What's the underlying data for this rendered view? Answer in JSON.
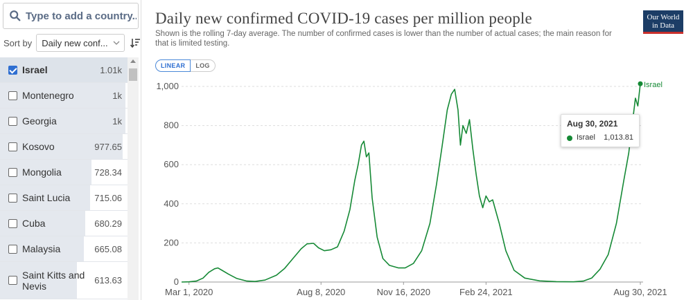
{
  "search": {
    "placeholder": "Type to add a country..."
  },
  "sort": {
    "label": "Sort by",
    "selected": "Daily new conf..."
  },
  "countries": [
    {
      "name": "Israel",
      "value_label": "1.01k",
      "value": 1013.81,
      "selected": true
    },
    {
      "name": "Montenegro",
      "value_label": "1k",
      "value": 1000,
      "selected": false
    },
    {
      "name": "Georgia",
      "value_label": "1k",
      "value": 1000,
      "selected": false
    },
    {
      "name": "Kosovo",
      "value_label": "977.65",
      "value": 977.65,
      "selected": false
    },
    {
      "name": "Mongolia",
      "value_label": "728.34",
      "value": 728.34,
      "selected": false
    },
    {
      "name": "Saint Lucia",
      "value_label": "715.06",
      "value": 715.06,
      "selected": false
    },
    {
      "name": "Cuba",
      "value_label": "680.29",
      "value": 680.29,
      "selected": false
    },
    {
      "name": "Malaysia",
      "value_label": "665.08",
      "value": 665.08,
      "selected": false
    },
    {
      "name": "Saint Kitts and Nevis",
      "value_label": "613.63",
      "value": 613.63,
      "selected": false
    }
  ],
  "logo": {
    "line1": "Our World",
    "line2": "in Data"
  },
  "scale_toggle": {
    "linear": "LINEAR",
    "log": "LOG",
    "active": "LINEAR"
  },
  "tooltip": {
    "date": "Aug 30, 2021",
    "series": "Israel",
    "value": "1,013.81"
  },
  "colors": {
    "series": "#158935",
    "accent": "#2f6fd1",
    "logo_bg": "#1c3d66"
  },
  "chart_data": {
    "type": "line",
    "title": "Daily new confirmed COVID-19 cases per million people",
    "subtitle": "Shown is the rolling 7-day average. The number of confirmed cases is lower than the number of actual cases; the main reason for that is limited testing.",
    "x_ticks": [
      "Mar 1, 2020",
      "Aug 8, 2020",
      "Nov 16, 2020",
      "Feb 24, 2021",
      "Aug 30, 2021"
    ],
    "y_ticks": [
      "0",
      "200",
      "400",
      "600",
      "800",
      "1,000"
    ],
    "ylim": [
      0,
      1000
    ],
    "xlim": [
      "2020-02-21",
      "2021-08-30"
    ],
    "grid": true,
    "series": [
      {
        "name": "Israel",
        "end_label": "Israel",
        "points": [
          [
            "2020-02-21",
            0
          ],
          [
            "2020-03-01",
            1
          ],
          [
            "2020-03-10",
            5
          ],
          [
            "2020-03-18",
            20
          ],
          [
            "2020-03-25",
            50
          ],
          [
            "2020-04-01",
            68
          ],
          [
            "2020-04-05",
            72
          ],
          [
            "2020-04-10",
            60
          ],
          [
            "2020-04-18",
            40
          ],
          [
            "2020-04-28",
            18
          ],
          [
            "2020-05-10",
            5
          ],
          [
            "2020-05-20",
            3
          ],
          [
            "2020-06-01",
            10
          ],
          [
            "2020-06-15",
            35
          ],
          [
            "2020-06-25",
            70
          ],
          [
            "2020-07-05",
            120
          ],
          [
            "2020-07-15",
            170
          ],
          [
            "2020-07-22",
            195
          ],
          [
            "2020-07-30",
            198
          ],
          [
            "2020-08-05",
            175
          ],
          [
            "2020-08-12",
            160
          ],
          [
            "2020-08-20",
            165
          ],
          [
            "2020-08-28",
            180
          ],
          [
            "2020-09-05",
            260
          ],
          [
            "2020-09-12",
            370
          ],
          [
            "2020-09-18",
            520
          ],
          [
            "2020-09-22",
            600
          ],
          [
            "2020-09-26",
            700
          ],
          [
            "2020-09-29",
            720
          ],
          [
            "2020-10-02",
            640
          ],
          [
            "2020-10-05",
            660
          ],
          [
            "2020-10-09",
            430
          ],
          [
            "2020-10-15",
            230
          ],
          [
            "2020-10-22",
            120
          ],
          [
            "2020-10-30",
            85
          ],
          [
            "2020-11-10",
            72
          ],
          [
            "2020-11-18",
            72
          ],
          [
            "2020-11-28",
            95
          ],
          [
            "2020-12-08",
            160
          ],
          [
            "2020-12-18",
            300
          ],
          [
            "2020-12-26",
            500
          ],
          [
            "2021-01-02",
            700
          ],
          [
            "2021-01-08",
            880
          ],
          [
            "2021-01-13",
            960
          ],
          [
            "2021-01-17",
            985
          ],
          [
            "2021-01-21",
            880
          ],
          [
            "2021-01-24",
            700
          ],
          [
            "2021-01-27",
            800
          ],
          [
            "2021-01-31",
            760
          ],
          [
            "2021-02-04",
            830
          ],
          [
            "2021-02-08",
            680
          ],
          [
            "2021-02-12",
            550
          ],
          [
            "2021-02-16",
            440
          ],
          [
            "2021-02-20",
            380
          ],
          [
            "2021-02-24",
            440
          ],
          [
            "2021-02-28",
            410
          ],
          [
            "2021-03-04",
            420
          ],
          [
            "2021-03-12",
            300
          ],
          [
            "2021-03-20",
            160
          ],
          [
            "2021-03-30",
            60
          ],
          [
            "2021-04-12",
            20
          ],
          [
            "2021-04-30",
            6
          ],
          [
            "2021-05-20",
            2
          ],
          [
            "2021-06-10",
            1
          ],
          [
            "2021-06-22",
            5
          ],
          [
            "2021-07-02",
            20
          ],
          [
            "2021-07-12",
            65
          ],
          [
            "2021-07-22",
            140
          ],
          [
            "2021-08-01",
            300
          ],
          [
            "2021-08-10",
            520
          ],
          [
            "2021-08-16",
            660
          ],
          [
            "2021-08-20",
            800
          ],
          [
            "2021-08-24",
            940
          ],
          [
            "2021-08-27",
            900
          ],
          [
            "2021-08-30",
            1013.81
          ]
        ]
      }
    ]
  }
}
